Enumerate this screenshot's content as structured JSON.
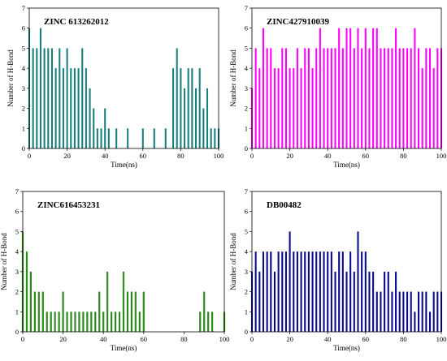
{
  "chart_data": [
    {
      "type": "bar",
      "title": "ZINC 613262012",
      "xlabel": "Time(ns)",
      "ylabel": "Number of H-Bond",
      "xlim": [
        0,
        100
      ],
      "ylim": [
        0,
        7
      ],
      "x_ticks": [
        "0",
        "20",
        "40",
        "60",
        "80",
        "100"
      ],
      "y_ticks": [
        "0",
        "1",
        "2",
        "3",
        "4",
        "5",
        "6",
        "7"
      ],
      "color": "#1a7f7f",
      "x": [
        0,
        2,
        4,
        6,
        8,
        10,
        12,
        14,
        16,
        18,
        20,
        22,
        24,
        26,
        28,
        30,
        32,
        34,
        36,
        38,
        40,
        42,
        44,
        46,
        48,
        50,
        52,
        54,
        56,
        58,
        60,
        62,
        64,
        66,
        68,
        70,
        72,
        74,
        76,
        78,
        80,
        82,
        84,
        86,
        88,
        90,
        92,
        94,
        96,
        98,
        100
      ],
      "values": [
        6,
        5,
        5,
        6,
        5,
        5,
        5,
        4,
        5,
        4,
        5,
        4,
        4,
        4,
        5,
        4,
        3,
        2,
        1,
        1,
        2,
        1,
        0,
        1,
        0,
        0,
        1,
        0,
        0,
        0,
        1,
        0,
        0,
        1,
        0,
        0,
        1,
        0,
        4,
        5,
        4,
        3,
        4,
        4,
        3,
        4,
        2,
        3,
        1,
        1,
        1
      ]
    },
    {
      "type": "bar",
      "title": "ZINC427910039",
      "xlabel": "Time(ns)",
      "ylabel": "Number of H-Bond",
      "xlim": [
        0,
        100
      ],
      "ylim": [
        0,
        7
      ],
      "x_ticks": [
        "0",
        "20",
        "40",
        "60",
        "80",
        "100"
      ],
      "y_ticks": [
        "0",
        "1",
        "2",
        "3",
        "4",
        "5",
        "6",
        "7"
      ],
      "color": "#ff00ff",
      "x": [
        0,
        2,
        4,
        6,
        8,
        10,
        12,
        14,
        16,
        18,
        20,
        22,
        24,
        26,
        28,
        30,
        32,
        34,
        36,
        38,
        40,
        42,
        44,
        46,
        48,
        50,
        52,
        54,
        56,
        58,
        60,
        62,
        64,
        66,
        68,
        70,
        72,
        74,
        76,
        78,
        80,
        82,
        84,
        86,
        88,
        90,
        92,
        94,
        96,
        98,
        100
      ],
      "values": [
        3,
        5,
        4,
        6,
        5,
        5,
        4,
        4,
        5,
        5,
        4,
        4,
        5,
        4,
        5,
        5,
        4,
        5,
        6,
        5,
        5,
        5,
        5,
        6,
        5,
        6,
        6,
        5,
        6,
        5,
        6,
        5,
        6,
        6,
        5,
        5,
        5,
        5,
        6,
        5,
        5,
        5,
        5,
        6,
        5,
        4,
        5,
        5,
        4,
        5,
        5
      ]
    },
    {
      "type": "bar",
      "title": "ZINC616453231",
      "xlabel": "Time(ns)",
      "ylabel": "Number of H-Bond",
      "xlim": [
        0,
        100
      ],
      "ylim": [
        0,
        7
      ],
      "x_ticks": [
        "0",
        "20",
        "40",
        "60",
        "80",
        "100"
      ],
      "y_ticks": [
        "0",
        "1",
        "2",
        "3",
        "4",
        "5",
        "6",
        "7"
      ],
      "color": "#2e8b1e",
      "x": [
        0,
        2,
        4,
        6,
        8,
        10,
        12,
        14,
        16,
        18,
        20,
        22,
        24,
        26,
        28,
        30,
        32,
        34,
        36,
        38,
        40,
        42,
        44,
        46,
        48,
        50,
        52,
        54,
        56,
        58,
        60,
        62,
        64,
        66,
        68,
        70,
        72,
        74,
        76,
        78,
        80,
        82,
        84,
        86,
        88,
        90,
        92,
        94,
        96,
        98,
        100
      ],
      "values": [
        5,
        4,
        3,
        2,
        2,
        2,
        1,
        1,
        1,
        1,
        2,
        1,
        1,
        1,
        1,
        1,
        1,
        1,
        1,
        2,
        1,
        3,
        1,
        1,
        1,
        3,
        2,
        2,
        2,
        1,
        2,
        0,
        0,
        0,
        0,
        0,
        0,
        0,
        0,
        0,
        0,
        0,
        0,
        0,
        1,
        2,
        1,
        1,
        0,
        0,
        1
      ]
    },
    {
      "type": "bar",
      "title": "DB00482",
      "xlabel": "Time(ns)",
      "ylabel": "Number of H-Bond",
      "xlim": [
        0,
        100
      ],
      "ylim": [
        0,
        7
      ],
      "x_ticks": [
        "0",
        "20",
        "40",
        "60",
        "80",
        "100"
      ],
      "y_ticks": [
        "0",
        "1",
        "2",
        "3",
        "4",
        "5",
        "6",
        "7"
      ],
      "color": "#0a0a8c",
      "x": [
        0,
        2,
        4,
        6,
        8,
        10,
        12,
        14,
        16,
        18,
        20,
        22,
        24,
        26,
        28,
        30,
        32,
        34,
        36,
        38,
        40,
        42,
        44,
        46,
        48,
        50,
        52,
        54,
        56,
        58,
        60,
        62,
        64,
        66,
        68,
        70,
        72,
        74,
        76,
        78,
        80,
        82,
        84,
        86,
        88,
        90,
        92,
        94,
        96,
        98,
        100
      ],
      "values": [
        3,
        4,
        3,
        4,
        4,
        4,
        3,
        4,
        4,
        4,
        5,
        4,
        4,
        4,
        4,
        4,
        4,
        4,
        4,
        4,
        4,
        4,
        3,
        4,
        4,
        3,
        4,
        3,
        5,
        4,
        4,
        3,
        3,
        2,
        2,
        3,
        3,
        2,
        3,
        2,
        2,
        2,
        2,
        1,
        2,
        2,
        2,
        1,
        2,
        2,
        2
      ]
    }
  ]
}
